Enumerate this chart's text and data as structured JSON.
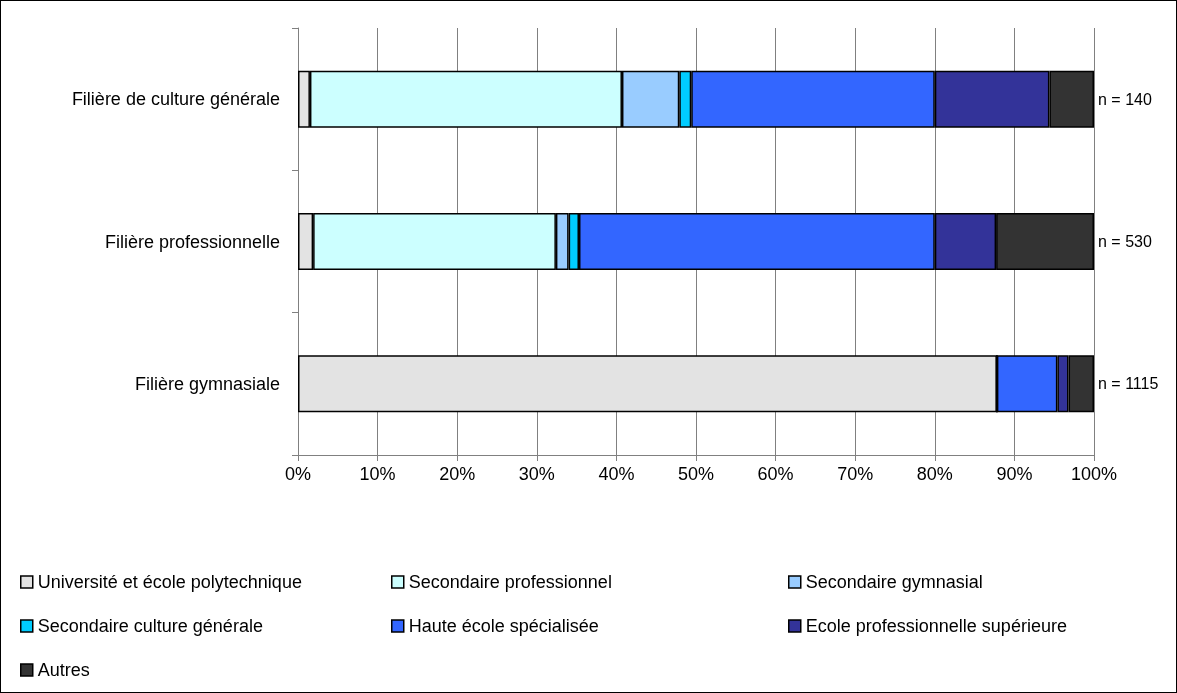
{
  "chart_data": {
    "type": "bar",
    "orientation": "horizontal",
    "stacked": true,
    "categories": [
      "Filière de culture générale",
      "Filière professionnelle",
      "Filière gymnasiale"
    ],
    "series": [
      {
        "name": "Université et école polytechnique",
        "color": "#e3e3e3",
        "values": [
          1.5,
          1.9,
          87.8
        ]
      },
      {
        "name": "Secondaire professionnel",
        "color": "#ccffff",
        "values": [
          39.2,
          30.5,
          null
        ]
      },
      {
        "name": "Secondaire gymnasial",
        "color": "#99ccff",
        "values": [
          7.2,
          1.6,
          0
        ]
      },
      {
        "name": "Secondaire culture générale",
        "color": "#00ccff",
        "values": [
          1.5,
          1.3,
          0
        ]
      },
      {
        "name": "Haute école spécialisée",
        "color": "#3366ff",
        "values": [
          30.6,
          44.7,
          7.6
        ]
      },
      {
        "name": "Ecole professionnelle supérieure",
        "color": "#333399",
        "values": [
          14.4,
          7.7,
          1.4
        ]
      },
      {
        "name": "Autres",
        "color": "#333333",
        "values": [
          5.6,
          12.3,
          3.2
        ]
      }
    ],
    "xlim": [
      0,
      100
    ],
    "xticks": [
      {
        "value": 0,
        "label": "0%"
      },
      {
        "value": 10,
        "label": "10%"
      },
      {
        "value": 20,
        "label": "20%"
      },
      {
        "value": 30,
        "label": "30%"
      },
      {
        "value": 40,
        "label": "40%"
      },
      {
        "value": 50,
        "label": "50%"
      },
      {
        "value": 60,
        "label": "60%"
      },
      {
        "value": 70,
        "label": "70%"
      },
      {
        "value": 80,
        "label": "80%"
      },
      {
        "value": 90,
        "label": "90%"
      },
      {
        "value": 100,
        "label": "100%"
      }
    ],
    "grid": "x",
    "legend": "bottom",
    "annotations": [
      "n = 140",
      "n = 530",
      "n = 1115"
    ]
  }
}
